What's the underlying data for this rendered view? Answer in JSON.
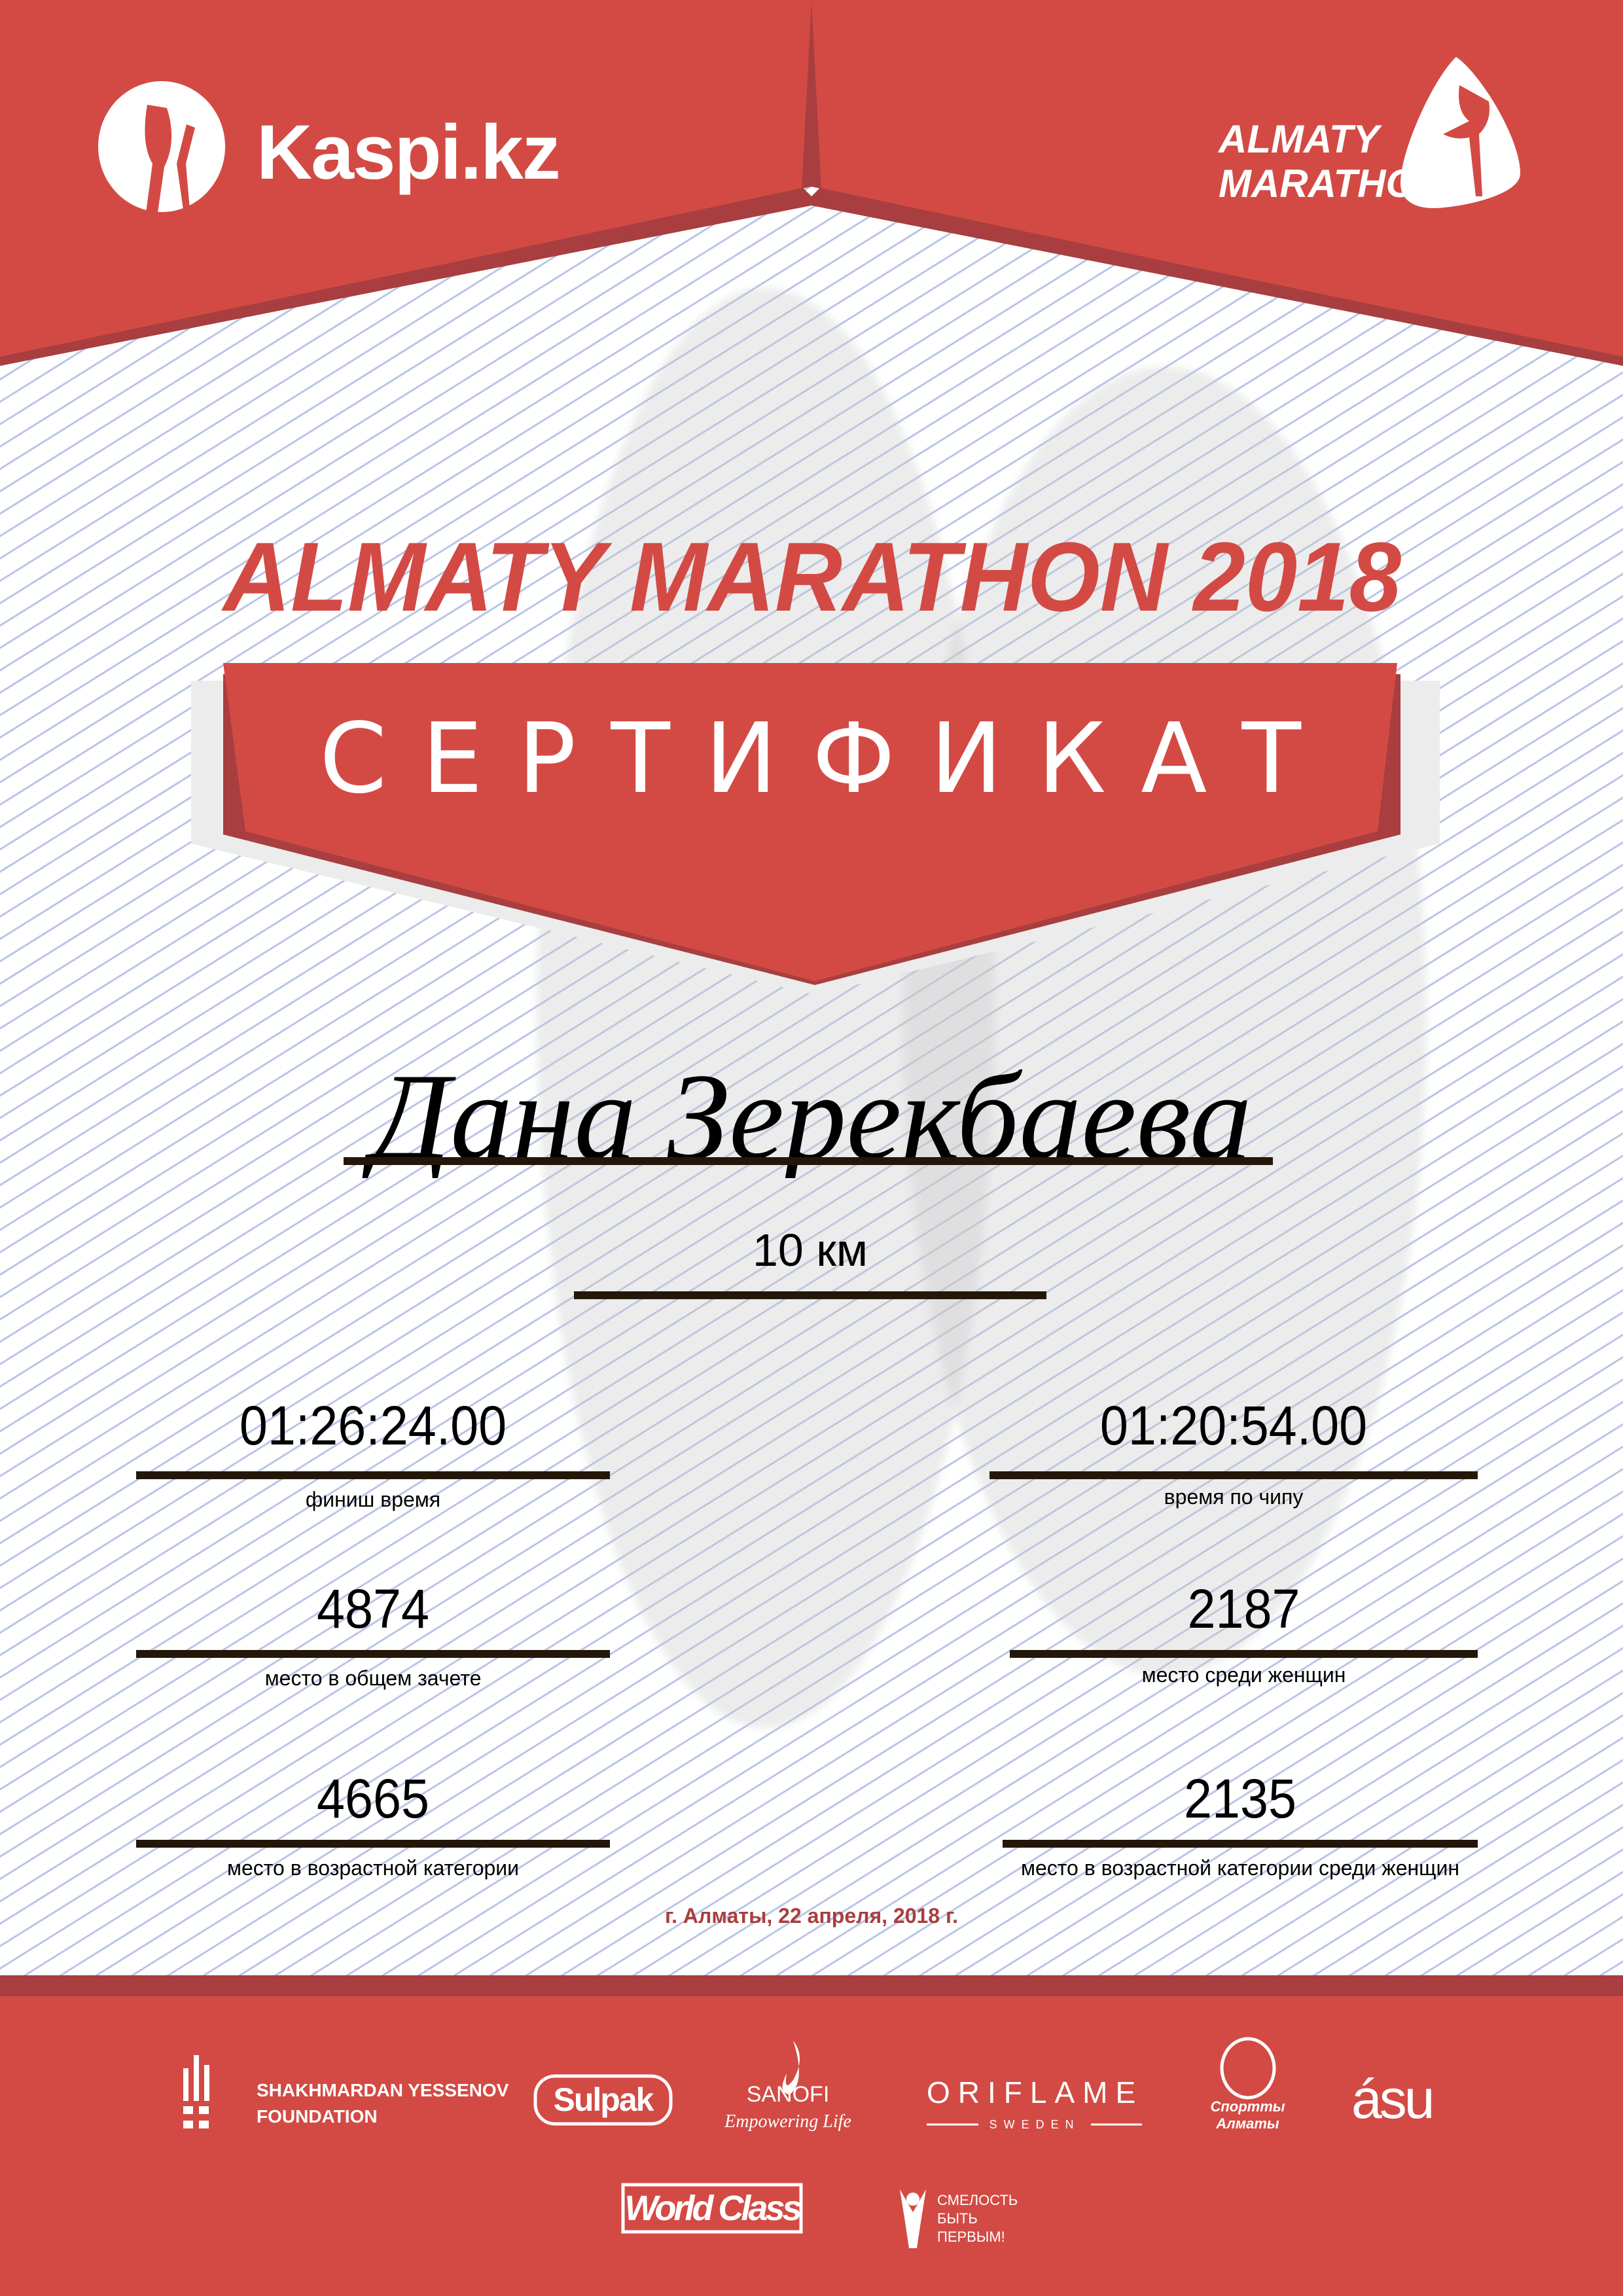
{
  "colors": {
    "red": "#d34a44",
    "dark_red": "#a83e3f",
    "text": "#000000",
    "line": "#231709",
    "date": "#a83e3f"
  },
  "header": {
    "sponsor_logo": "Kaspi.kz",
    "event_logo_line1": "ALMATY",
    "event_logo_line2": "MARATHON"
  },
  "title": "ALMATY MARATHON 2018",
  "banner": "СЕРТИФИКАТ",
  "participant": {
    "name": "Дана Зерекбаева",
    "distance": "10 км"
  },
  "stats": [
    {
      "value": "01:26:24.00",
      "label": "финиш время"
    },
    {
      "value": "01:20:54.00",
      "label": "время по чипу"
    },
    {
      "value": "4874",
      "label": "место в общем зачете"
    },
    {
      "value": "2187",
      "label": "место среди женщин"
    },
    {
      "value": "4665",
      "label": "место в возрастной категории"
    },
    {
      "value": "2135",
      "label": "место в возрастной категории среди женщин"
    }
  ],
  "date": "г. Алматы, 22 апреля, 2018 г.",
  "partners": {
    "yessenov_line1": "SHAKHMARDAN YESSENOV",
    "yessenov_line2": "FOUNDATION",
    "sulpak": "Sulpak",
    "sanofi": "SANOFI",
    "sanofi_tagline": "Empowering Life",
    "oriflame": "ORIFLAME",
    "oriflame_sub": "SWEDEN",
    "sport_almaty": "Спортты Алматы",
    "asu": "ásu",
    "world_class": "World Class",
    "smelost": [
      "СМЕЛОСТЬ",
      "БЫТЬ",
      "ПЕРВЫМ!"
    ]
  }
}
